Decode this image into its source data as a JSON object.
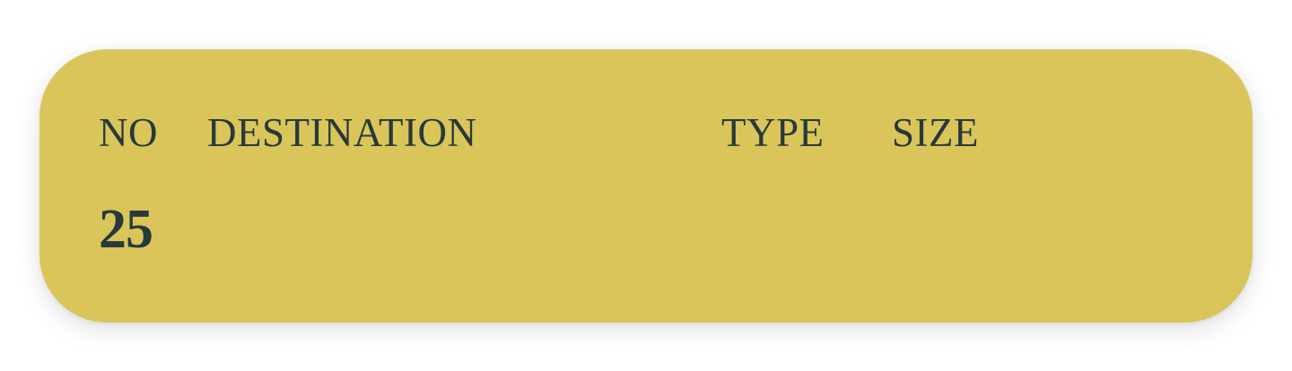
{
  "colors": {
    "card_background": "#d9c55a",
    "text": "#27393b"
  },
  "table": {
    "headers": {
      "no": "NO",
      "destination": "DESTINATION",
      "type": "TYPE",
      "size": "SIZE"
    },
    "rows": [
      {
        "no": "25",
        "destination": "",
        "type": "",
        "size": ""
      }
    ]
  }
}
